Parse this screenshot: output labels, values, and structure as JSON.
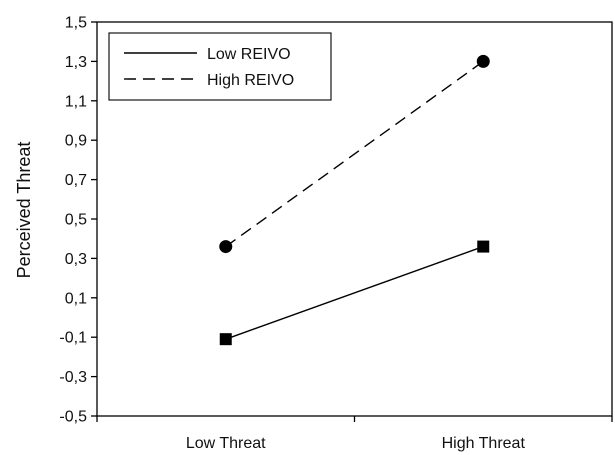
{
  "chart_data": {
    "type": "line",
    "title": "",
    "xlabel": "",
    "ylabel": "Perceived Threat",
    "categories": [
      "Low Threat",
      "High Threat"
    ],
    "ylim": [
      -0.5,
      1.5
    ],
    "yticks": [
      "-0,5",
      "-0,3",
      "-0,1",
      "0,1",
      "0,3",
      "0,5",
      "0,7",
      "0,9",
      "1,1",
      "1,3",
      "1,5"
    ],
    "grid": false,
    "legend_position": "top-left",
    "series": [
      {
        "name": "Low REIVO",
        "values": [
          -0.11,
          0.36
        ],
        "line_style": "solid",
        "marker": "square",
        "color": "#000000"
      },
      {
        "name": "High REIVO",
        "values": [
          0.36,
          1.3
        ],
        "line_style": "dashed",
        "marker": "circle",
        "color": "#000000"
      }
    ]
  }
}
